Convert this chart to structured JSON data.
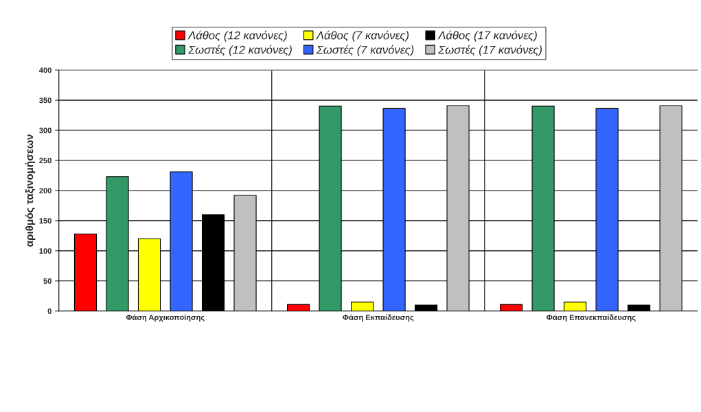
{
  "chart_data": {
    "type": "bar",
    "ylabel": "αριθμός ταξινομήσεων",
    "categories": [
      "Φάση Αρχικοποίησης",
      "Φάση Εκπαίδευσης",
      "Φάση Επανεκπαίδευσης"
    ],
    "series": [
      {
        "name": "Λάθος (12 κανόνες)",
        "color": "#ff0000",
        "values": [
          128,
          11,
          11
        ]
      },
      {
        "name": "Σωστές (12 κανόνες)",
        "color": "#339966",
        "values": [
          223,
          340,
          340
        ]
      },
      {
        "name": "Λάθος (7 κανόνες)",
        "color": "#ffff00",
        "values": [
          120,
          15,
          15
        ]
      },
      {
        "name": "Σωστές (7 κανόνες)",
        "color": "#3366ff",
        "values": [
          231,
          336,
          336
        ]
      },
      {
        "name": "Λάθος (17 κανόνες)",
        "color": "#000000",
        "values": [
          160,
          10,
          10
        ]
      },
      {
        "name": "Σωστές (17 κανόνες)",
        "color": "#c0c0c0",
        "values": [
          192,
          341,
          341
        ]
      }
    ],
    "ylim": [
      0,
      400
    ],
    "yticks": [
      0,
      50,
      100,
      150,
      200,
      250,
      300,
      350,
      400
    ],
    "grid": true,
    "legend": "top"
  }
}
